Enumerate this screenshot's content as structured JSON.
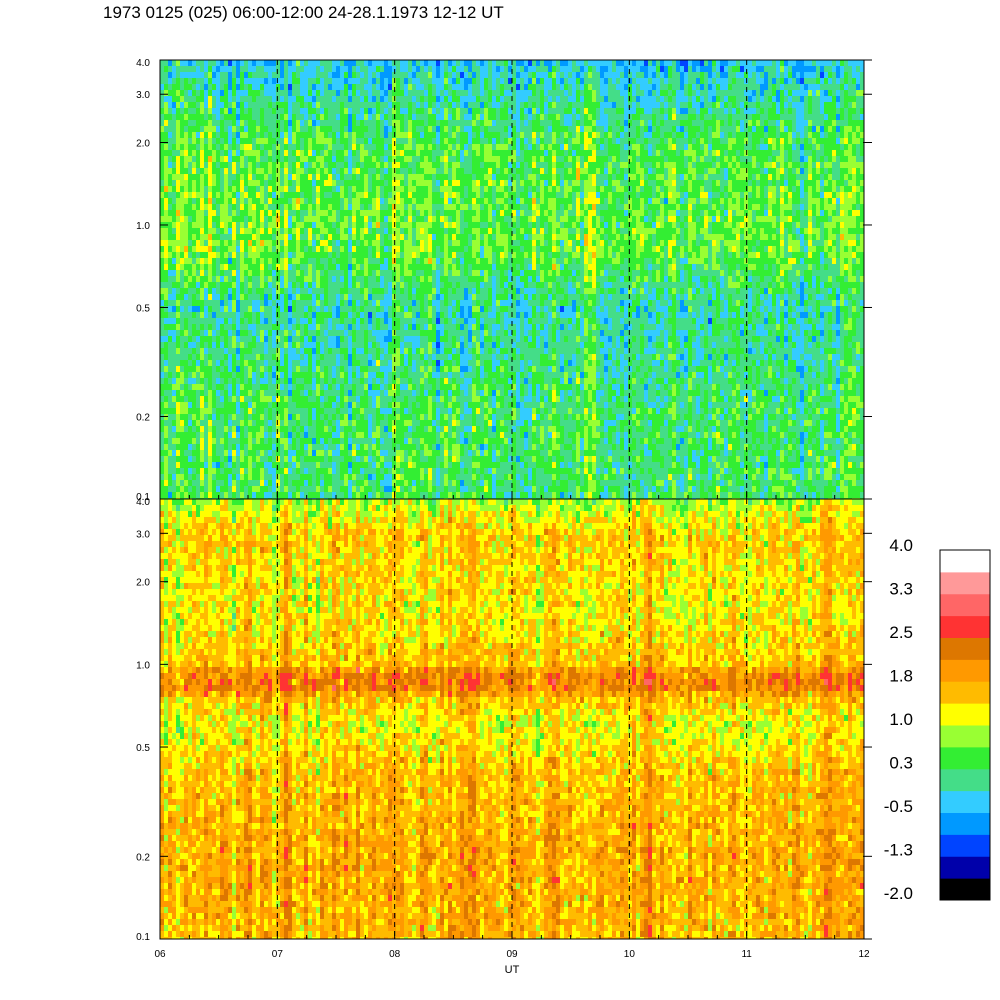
{
  "title": "1973 0125 (025) 06:00-12:00 24-28.1.1973  12-12 UT",
  "chart_data": [
    {
      "type": "heatmap",
      "name": "upper-spectrogram",
      "x_range": [
        6,
        12
      ],
      "y_scale": "log",
      "y_range": [
        0.1,
        4.0
      ],
      "y_ticks": [
        {
          "value": 4.0,
          "label": "4.0"
        },
        {
          "value": 3.0,
          "label": "3.0"
        },
        {
          "value": 2.0,
          "label": "2.0"
        },
        {
          "value": 1.0,
          "label": "1.0"
        },
        {
          "value": 0.5,
          "label": "0.5"
        },
        {
          "value": 0.2,
          "label": "0.2"
        },
        {
          "value": 0.1,
          "label": "0.1"
        }
      ],
      "value_profile": [
        {
          "y": 0.1,
          "level": 0.3
        },
        {
          "y": 0.2,
          "level": 0.3
        },
        {
          "y": 0.5,
          "level": 0.0
        },
        {
          "y": 0.8,
          "level": 0.6
        },
        {
          "y": 1.5,
          "level": 0.5
        },
        {
          "y": 2.0,
          "level": 0.4
        },
        {
          "y": 3.0,
          "level": 0.0
        },
        {
          "y": 4.0,
          "level": -0.3
        }
      ]
    },
    {
      "type": "heatmap",
      "name": "lower-spectrogram",
      "x_range": [
        6,
        12
      ],
      "y_scale": "log",
      "y_range": [
        0.1,
        4.0
      ],
      "y_ticks": [
        {
          "value": 4.0,
          "label": "4.0"
        },
        {
          "value": 3.0,
          "label": "3.0"
        },
        {
          "value": 2.0,
          "label": "2.0"
        },
        {
          "value": 1.0,
          "label": "1.0"
        },
        {
          "value": 0.5,
          "label": "0.5"
        },
        {
          "value": 0.2,
          "label": "0.2"
        },
        {
          "value": 0.1,
          "label": "0.1"
        }
      ],
      "value_profile": [
        {
          "y": 0.1,
          "level": 1.7
        },
        {
          "y": 0.2,
          "level": 1.8
        },
        {
          "y": 0.4,
          "level": 1.6
        },
        {
          "y": 0.6,
          "level": 1.2
        },
        {
          "y": 0.75,
          "level": 1.6
        },
        {
          "y": 0.82,
          "level": 2.2
        },
        {
          "y": 0.92,
          "level": 2.2
        },
        {
          "y": 1.0,
          "level": 1.6
        },
        {
          "y": 1.5,
          "level": 1.3
        },
        {
          "y": 3.0,
          "level": 1.5
        },
        {
          "y": 4.0,
          "level": 0.9
        }
      ]
    }
  ],
  "x_axis": {
    "label": "UT",
    "ticks": [
      {
        "value": 6,
        "label": "06"
      },
      {
        "value": 7,
        "label": "07"
      },
      {
        "value": 8,
        "label": "08"
      },
      {
        "value": 9,
        "label": "09"
      },
      {
        "value": 10,
        "label": "10"
      },
      {
        "value": 11,
        "label": "11"
      },
      {
        "value": 12,
        "label": "12"
      }
    ],
    "minor_step": 0.25,
    "dashed_lines_at": [
      7,
      8,
      9,
      10,
      11
    ]
  },
  "colorbar": {
    "range": [
      -2.0,
      4.0
    ],
    "colors": [
      "#000000",
      "#0000aa",
      "#0044ff",
      "#0099ff",
      "#33ccff",
      "#44dd88",
      "#33ee33",
      "#99ff33",
      "#ffff00",
      "#ffbb00",
      "#ff9900",
      "#dd7700",
      "#ff3333",
      "#ff6666",
      "#ff9999",
      "#ffffff"
    ],
    "labels": [
      "4.0",
      "3.3",
      "2.5",
      "1.8",
      "1.0",
      "0.3",
      "-0.5",
      "-1.3",
      "-2.0"
    ]
  }
}
